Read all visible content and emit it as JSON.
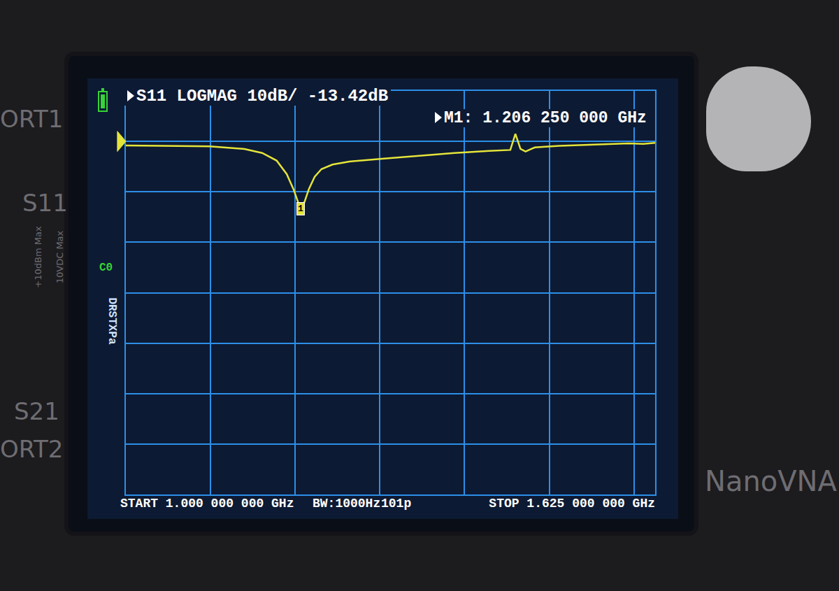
{
  "chart_data": {
    "type": "line",
    "title": "S11 LOGMAG 10dB/ -13.42dB",
    "x": [
      1.0,
      1.058,
      1.099,
      1.14,
      1.161,
      1.178,
      1.19,
      1.198,
      1.20625,
      1.211,
      1.216,
      1.223,
      1.231,
      1.244,
      1.264,
      1.305,
      1.347,
      1.388,
      1.429,
      1.454,
      1.46,
      1.466,
      1.472,
      1.483,
      1.512,
      1.553,
      1.594,
      1.611,
      1.625
    ],
    "series": [
      {
        "color": "#e4e43a",
        "values": [
          -0.8,
          -0.9,
          -1.0,
          -1.5,
          -2.3,
          -3.8,
          -6.5,
          -9.5,
          -13.42,
          -12.0,
          -9.5,
          -7.0,
          -5.5,
          -4.6,
          -4.0,
          -3.4,
          -2.8,
          -2.3,
          -1.9,
          -1.7,
          1.5,
          -1.5,
          -2.0,
          -1.2,
          -0.9,
          -0.6,
          -0.4,
          -0.5,
          -0.3
        ]
      }
    ],
    "xlim": [
      1.0,
      1.625
    ],
    "xticks": [
      1.0,
      1.1,
      1.2,
      1.3,
      1.4,
      1.5,
      1.6,
      1.625
    ],
    "ylim": [
      -70,
      10
    ],
    "yticks": [
      -70,
      -60,
      -50,
      -40,
      -30,
      -20,
      -10,
      0,
      10
    ],
    "grid": true,
    "tick_labels": false,
    "reference_level": 0,
    "markers": [
      {
        "label": "1",
        "x": 1.20625,
        "value": -13.42
      }
    ],
    "annotations": {
      "marker_readout": "M1: 1.206 250 000 GHz",
      "start": "START 1.000 000 000 GHz",
      "bandwidth": "BW:1000Hz",
      "points": "101p",
      "stop": "STOP 1.625 000 000 GHz",
      "cal_level": "C0",
      "cal_status": "DRSTXPa"
    }
  },
  "device": {
    "port1": "ORT1",
    "s11": "S11",
    "s21": "S21",
    "port2": "ORT2",
    "power": "+10dBm Max",
    "voltage": "10VDC Max",
    "brand": "NanoVNA"
  }
}
